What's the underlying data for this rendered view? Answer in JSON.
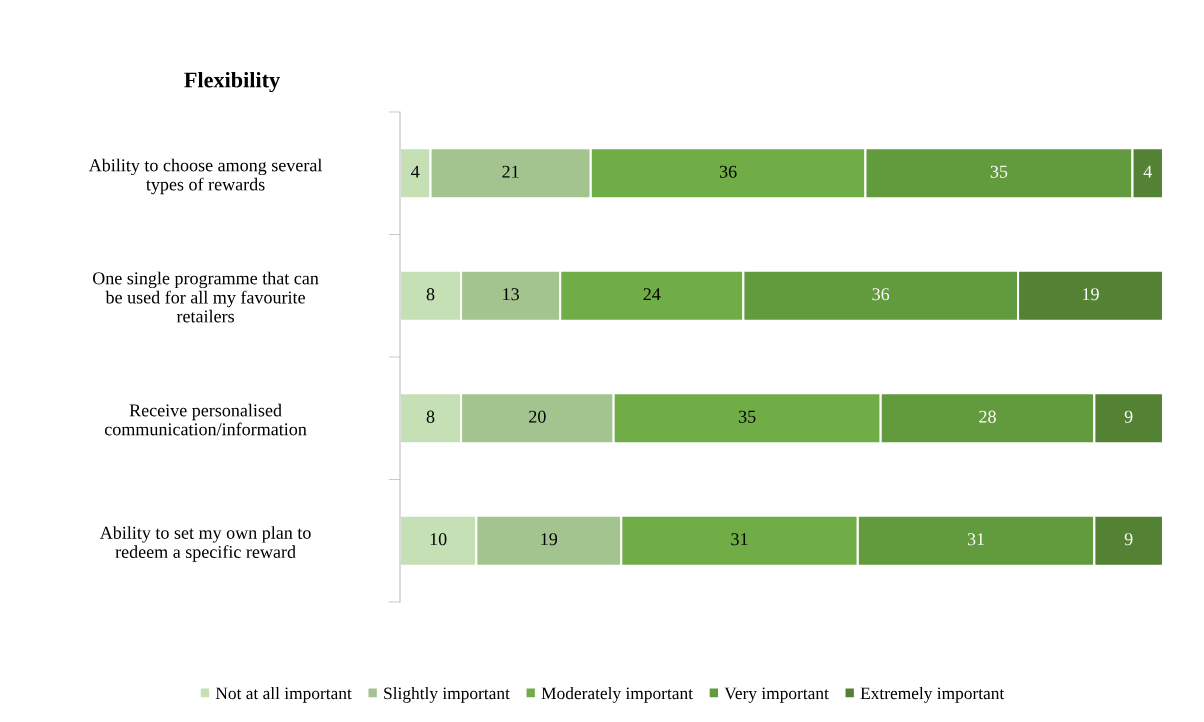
{
  "chart_data": {
    "type": "bar",
    "orientation": "horizontal",
    "stacked": true,
    "title": "Flexibility",
    "categories": [
      "Ability to choose among several\ntypes of rewards",
      "One single programme that can\nbe used for all my favourite\nretailers",
      "Receive personalised\ncommunication/information",
      "Ability to set my own plan to\nredeem a specific reward"
    ],
    "series": [
      {
        "name": "Not at all important",
        "color": "#c5e0b4",
        "values": [
          4,
          8,
          8,
          10
        ]
      },
      {
        "name": "Slightly important",
        "color": "#a3c48f",
        "values": [
          21,
          13,
          20,
          19
        ]
      },
      {
        "name": "Moderately important",
        "color": "#70ad47",
        "values": [
          36,
          24,
          35,
          31
        ]
      },
      {
        "name": "Very important",
        "color": "#629b3d",
        "values": [
          35,
          36,
          28,
          31
        ]
      },
      {
        "name": "Extremely important",
        "color": "#548235",
        "values": [
          4,
          19,
          9,
          9
        ]
      }
    ],
    "xlim": [
      0,
      100
    ],
    "tick_labels": "y",
    "data_labels": true,
    "legend": "bottom",
    "grid": false
  }
}
